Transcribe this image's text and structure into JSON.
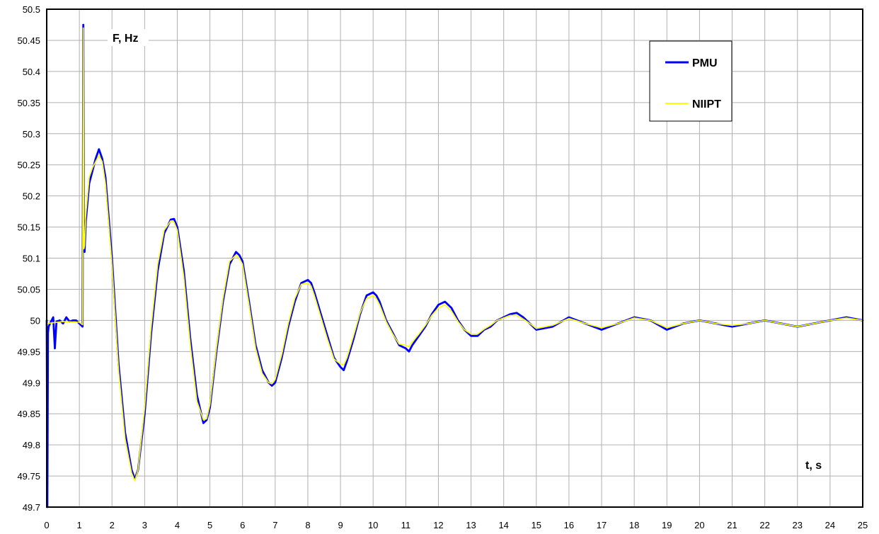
{
  "chart_data": {
    "type": "line",
    "title": "",
    "xlabel": "t, s",
    "ylabel": "F, Hz",
    "xlim": [
      0,
      25
    ],
    "ylim": [
      49.7,
      50.5
    ],
    "x_ticks": [
      "0",
      "1",
      "2",
      "3",
      "4",
      "5",
      "6",
      "7",
      "8",
      "9",
      "10",
      "11",
      "12",
      "13",
      "14",
      "15",
      "16",
      "17",
      "18",
      "19",
      "20",
      "21",
      "22",
      "23",
      "24",
      "25"
    ],
    "y_ticks": [
      "49.7",
      "49.75",
      "49.8",
      "49.85",
      "49.9",
      "49.95",
      "50",
      "50.05",
      "50.1",
      "50.15",
      "50.2",
      "50.25",
      "50.3",
      "50.35",
      "50.4",
      "50.45",
      "50.5"
    ],
    "grid": true,
    "legend_position": "top-right",
    "series": [
      {
        "name": "PMU",
        "color": "#0000ff",
        "x": [
          0,
          0.02,
          0.04,
          0.06,
          0.1,
          0.2,
          0.25,
          0.3,
          0.4,
          0.5,
          0.6,
          0.7,
          0.8,
          0.9,
          1.0,
          1.1,
          1.12,
          1.14,
          1.16,
          1.2,
          1.3,
          1.4,
          1.5,
          1.6,
          1.7,
          1.8,
          2.0,
          2.2,
          2.4,
          2.6,
          2.7,
          2.8,
          3.0,
          3.2,
          3.4,
          3.6,
          3.8,
          3.9,
          4.0,
          4.2,
          4.4,
          4.6,
          4.8,
          4.9,
          5.0,
          5.2,
          5.4,
          5.6,
          5.8,
          5.9,
          6.0,
          6.2,
          6.4,
          6.6,
          6.8,
          6.9,
          7.0,
          7.2,
          7.4,
          7.6,
          7.8,
          8.0,
          8.1,
          8.2,
          8.4,
          8.6,
          8.8,
          9.0,
          9.1,
          9.2,
          9.4,
          9.6,
          9.8,
          10.0,
          10.1,
          10.2,
          10.4,
          10.6,
          10.8,
          11.0,
          11.1,
          11.2,
          11.4,
          11.6,
          11.8,
          12.0,
          12.2,
          12.4,
          12.6,
          12.8,
          13.0,
          13.2,
          13.4,
          13.6,
          13.8,
          14.0,
          14.2,
          14.4,
          14.6,
          14.8,
          15.0,
          15.5,
          16.0,
          16.5,
          17.0,
          17.5,
          18.0,
          18.5,
          19.0,
          19.5,
          20.0,
          20.5,
          21.0,
          21.5,
          22.0,
          22.5,
          23.0,
          23.5,
          24.0,
          24.5,
          25.0
        ],
        "y": [
          50.0,
          49.7,
          49.98,
          49.99,
          49.995,
          50.005,
          49.955,
          49.998,
          50.0,
          49.995,
          50.005,
          49.998,
          50.0,
          50.0,
          49.995,
          49.99,
          50.475,
          50.12,
          50.11,
          50.16,
          50.22,
          50.24,
          50.26,
          50.275,
          50.26,
          50.23,
          50.1,
          49.93,
          49.82,
          49.76,
          49.745,
          49.76,
          49.85,
          49.98,
          50.08,
          50.14,
          50.162,
          50.163,
          50.15,
          50.08,
          49.97,
          49.88,
          49.835,
          49.84,
          49.86,
          49.95,
          50.03,
          50.09,
          50.11,
          50.105,
          50.095,
          50.03,
          49.96,
          49.92,
          49.9,
          49.895,
          49.9,
          49.94,
          49.99,
          50.03,
          50.06,
          50.065,
          50.06,
          50.045,
          50.01,
          49.975,
          49.94,
          49.925,
          49.92,
          49.935,
          49.97,
          50.01,
          50.04,
          50.045,
          50.04,
          50.03,
          50.0,
          49.98,
          49.96,
          49.955,
          49.95,
          49.96,
          49.975,
          49.99,
          50.01,
          50.025,
          50.03,
          50.02,
          50.0,
          49.985,
          49.975,
          49.975,
          49.985,
          49.99,
          50.0,
          50.005,
          50.01,
          50.012,
          50.005,
          49.995,
          49.985,
          49.99,
          50.005,
          49.995,
          49.985,
          49.995,
          50.005,
          50.0,
          49.985,
          49.995,
          50.0,
          49.995,
          49.99,
          49.995,
          50.0,
          49.995,
          49.99,
          49.995,
          50.0,
          50.005,
          50.0
        ]
      },
      {
        "name": "NIIPT",
        "color": "#ffff00",
        "x": [
          0,
          0.5,
          1.0,
          1.1,
          1.12,
          1.14,
          1.16,
          1.2,
          1.3,
          1.4,
          1.5,
          1.6,
          1.7,
          1.8,
          2.0,
          2.2,
          2.4,
          2.6,
          2.7,
          2.8,
          3.0,
          3.2,
          3.4,
          3.6,
          3.8,
          3.9,
          4.0,
          4.2,
          4.4,
          4.6,
          4.8,
          4.9,
          5.0,
          5.2,
          5.4,
          5.6,
          5.8,
          5.9,
          6.0,
          6.2,
          6.4,
          6.6,
          6.8,
          6.9,
          7.0,
          7.2,
          7.4,
          7.6,
          7.8,
          8.0,
          8.1,
          8.2,
          8.4,
          8.6,
          8.8,
          9.0,
          9.1,
          9.2,
          9.4,
          9.6,
          9.8,
          10.0,
          10.1,
          10.2,
          10.4,
          10.6,
          10.8,
          11.0,
          11.1,
          11.2,
          11.4,
          11.6,
          11.8,
          12.0,
          12.2,
          12.4,
          12.6,
          12.8,
          13.0,
          13.2,
          13.4,
          13.6,
          13.8,
          14.0,
          14.2,
          14.4,
          14.6,
          14.8,
          15.0,
          15.5,
          16.0,
          16.5,
          17.0,
          17.5,
          18.0,
          18.5,
          19.0,
          19.5,
          20.0,
          20.5,
          21.0,
          21.5,
          22.0,
          22.5,
          23.0,
          23.5,
          24.0,
          24.5,
          25.0
        ],
        "y": [
          49.995,
          49.998,
          49.997,
          49.993,
          50.47,
          50.115,
          50.12,
          50.17,
          50.23,
          50.245,
          50.255,
          50.265,
          50.255,
          50.22,
          50.09,
          49.92,
          49.81,
          49.755,
          49.742,
          49.76,
          49.86,
          49.99,
          50.09,
          50.145,
          50.16,
          50.158,
          50.145,
          50.07,
          49.96,
          49.87,
          49.84,
          49.842,
          49.865,
          49.955,
          50.035,
          50.095,
          50.105,
          50.1,
          50.09,
          50.025,
          49.955,
          49.915,
          49.9,
          49.898,
          49.905,
          49.945,
          49.995,
          50.035,
          50.058,
          50.06,
          50.055,
          50.04,
          50.005,
          49.97,
          49.938,
          49.93,
          49.928,
          49.94,
          49.975,
          50.012,
          50.035,
          50.04,
          50.035,
          50.025,
          49.998,
          49.978,
          49.962,
          49.96,
          49.958,
          49.965,
          49.978,
          49.992,
          50.008,
          50.02,
          50.025,
          50.015,
          49.998,
          49.985,
          49.978,
          49.978,
          49.986,
          49.992,
          50.0,
          50.004,
          50.008,
          50.008,
          50.002,
          49.995,
          49.987,
          49.992,
          50.003,
          49.995,
          49.988,
          49.995,
          50.004,
          50.0,
          49.988,
          49.995,
          50.0,
          49.995,
          49.992,
          49.995,
          50.0,
          49.995,
          49.99,
          49.995,
          50.0,
          50.004,
          50.0
        ]
      }
    ]
  }
}
